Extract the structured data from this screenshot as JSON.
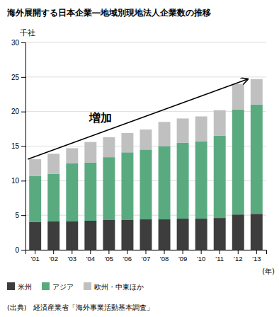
{
  "chart_data": {
    "type": "bar",
    "stacked": true,
    "title": "海外展開する日本企業―地域別現地法人企業数の推移",
    "ylabel": "千社",
    "xlabel": "(年)",
    "annotation": "増加",
    "source": "(出典)　経済産業省「海外事業活動基本調査」",
    "categories": [
      "'01",
      "'02",
      "'03",
      "'04",
      "'05",
      "'06",
      "'07",
      "'08",
      "'09",
      "'10",
      "'11",
      "'12",
      "'13"
    ],
    "series": [
      {
        "name": "米州",
        "color": "#3d3d3d",
        "values": [
          4.0,
          4.1,
          4.1,
          4.2,
          4.3,
          4.3,
          4.4,
          4.4,
          4.5,
          4.5,
          4.6,
          5.1,
          5.2
        ]
      },
      {
        "name": "アジア",
        "color": "#5aaa80",
        "values": [
          6.7,
          6.9,
          8.4,
          8.4,
          9.1,
          9.8,
          10.1,
          10.6,
          11.0,
          11.2,
          11.9,
          15.2,
          15.8
        ]
      },
      {
        "name": "欧州・中東ほか",
        "color": "#c0c0c0",
        "values": [
          2.4,
          2.9,
          2.2,
          3.0,
          2.9,
          2.8,
          2.9,
          3.5,
          3.5,
          3.6,
          3.7,
          3.7,
          3.7
        ]
      }
    ],
    "ylim": [
      0,
      30
    ],
    "yticks": [
      0,
      5,
      10,
      15,
      20,
      25,
      30
    ],
    "grid": true,
    "legend": "bottom"
  }
}
